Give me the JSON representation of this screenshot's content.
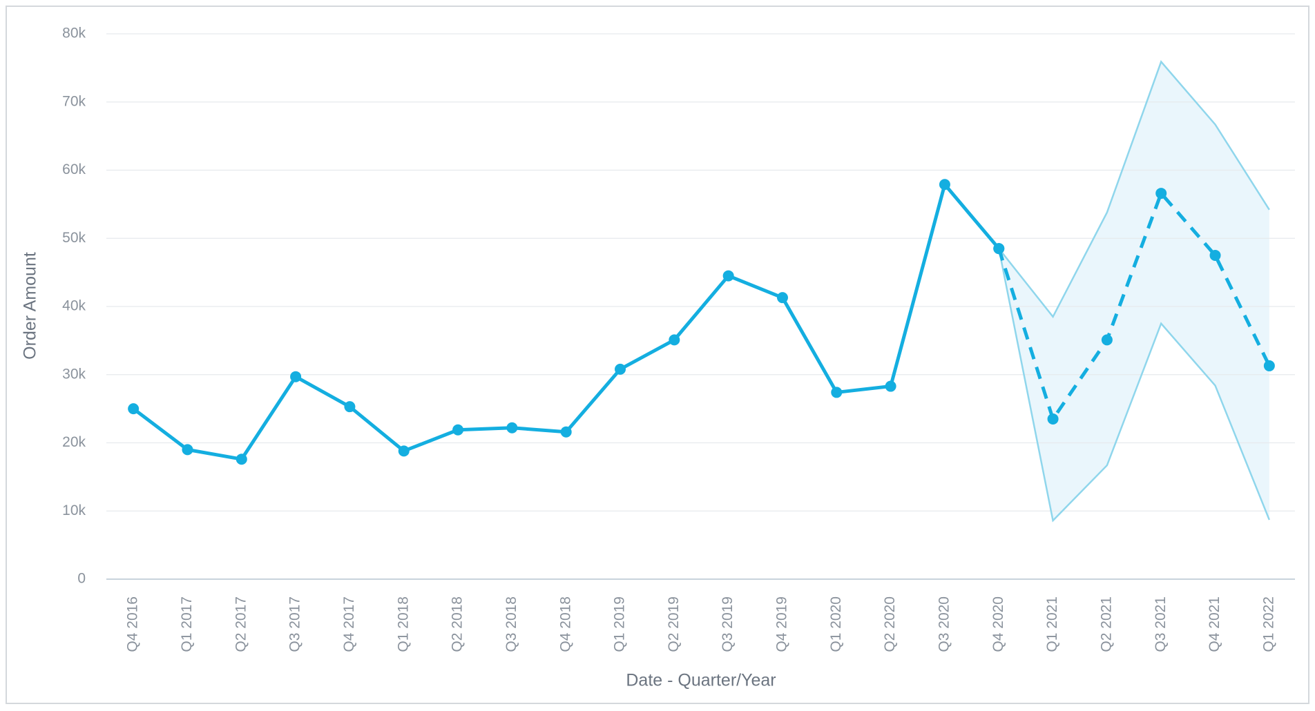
{
  "chart_data": {
    "type": "line",
    "x_label": "Date - Quarter/Year",
    "y_label": "Order Amount",
    "categories": [
      "Q4 2016",
      "Q1 2017",
      "Q2 2017",
      "Q3 2017",
      "Q4 2017",
      "Q1 2018",
      "Q2 2018",
      "Q3 2018",
      "Q4 2018",
      "Q1 2019",
      "Q2 2019",
      "Q3 2019",
      "Q4 2019",
      "Q1 2020",
      "Q2 2020",
      "Q3 2020",
      "Q4 2020",
      "Q1 2021",
      "Q2 2021",
      "Q3 2021",
      "Q4 2021",
      "Q1 2022"
    ],
    "series": [
      {
        "color": "#14aee0",
        "dashed": false,
        "values": [
          25000,
          19000,
          17600,
          29700,
          25300,
          18800,
          21900,
          22200,
          21600,
          30800,
          35100,
          44500,
          41300,
          27400,
          28300,
          57900,
          48500,
          null,
          null,
          null,
          null,
          null
        ]
      },
      {
        "color": "#14aee0",
        "dashed": true,
        "values": [
          null,
          null,
          null,
          null,
          null,
          null,
          null,
          null,
          null,
          null,
          null,
          null,
          null,
          null,
          null,
          null,
          48500,
          23500,
          35100,
          56600,
          47500,
          31300
        ]
      }
    ],
    "band": {
      "color": "#8fd6ec",
      "fill": "#eaf6fc",
      "upper": [
        null,
        null,
        null,
        null,
        null,
        null,
        null,
        null,
        null,
        null,
        null,
        null,
        null,
        null,
        null,
        null,
        48500,
        38500,
        53800,
        75900,
        66700,
        54200
      ],
      "lower": [
        null,
        null,
        null,
        null,
        null,
        null,
        null,
        null,
        null,
        null,
        null,
        null,
        null,
        null,
        null,
        null,
        48500,
        8600,
        16700,
        37500,
        28400,
        8700
      ]
    },
    "ylim": [
      0,
      80000
    ],
    "yticks": [
      0,
      {
        "value": 10000,
        "label": "10k"
      },
      {
        "value": 20000,
        "label": "20k"
      },
      {
        "value": 30000,
        "label": "30k"
      },
      {
        "value": 40000,
        "label": "40k"
      },
      {
        "value": 50000,
        "label": "50k"
      },
      {
        "value": 60000,
        "label": "60k"
      },
      {
        "value": 70000,
        "label": "70k"
      },
      {
        "value": 80000,
        "label": "80k"
      }
    ],
    "grid": true
  }
}
